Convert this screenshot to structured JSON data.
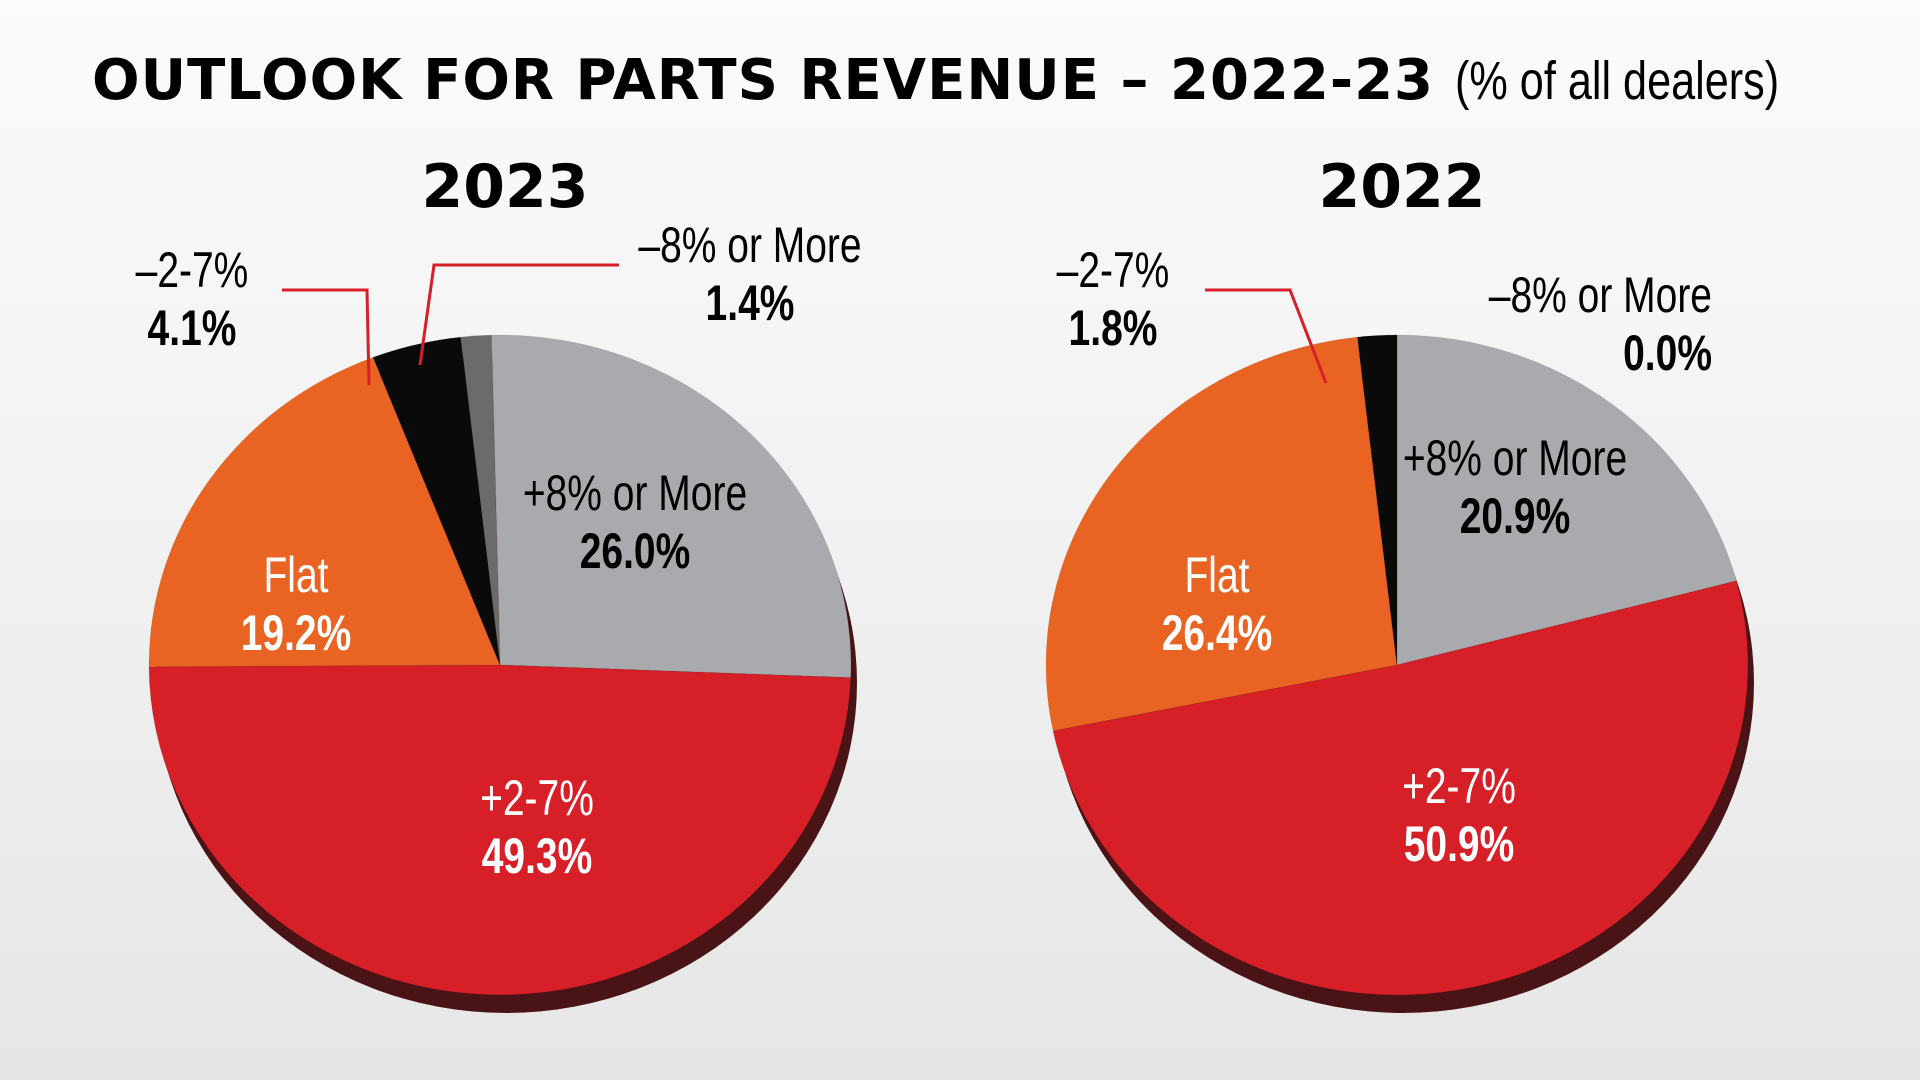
{
  "title": {
    "main": "OUTLOOK FOR PARTS REVENUE – 2022-23",
    "sub": "(% of all dealers)"
  },
  "colors": {
    "increase_8_or_more": "#a9aaad",
    "increase_2_7": "#d71f27",
    "flat": "#e96423",
    "decrease_2_7": "#0a0a0a",
    "decrease_8_or_more": "#6b6b6b",
    "leader_line": "#d71f27"
  },
  "chart_data": [
    {
      "type": "pie",
      "title": "2023",
      "slices": [
        {
          "label": "+8% or More",
          "value": 26.0,
          "value_label": "26.0%",
          "color": "#a9aaad"
        },
        {
          "label": "+2-7%",
          "value": 49.3,
          "value_label": "49.3%",
          "color": "#d71f27"
        },
        {
          "label": "Flat",
          "value": 19.2,
          "value_label": "19.2%",
          "color": "#e96423"
        },
        {
          "label": "–2-7%",
          "value": 4.1,
          "value_label": "4.1%",
          "color": "#0a0a0a"
        },
        {
          "label": "–8% or More",
          "value": 1.4,
          "value_label": "1.4%",
          "color": "#6b6b6b"
        }
      ]
    },
    {
      "type": "pie",
      "title": "2022",
      "slices": [
        {
          "label": "+8% or More",
          "value": 20.9,
          "value_label": "20.9%",
          "color": "#a9aaad"
        },
        {
          "label": "+2-7%",
          "value": 50.9,
          "value_label": "50.9%",
          "color": "#d71f27"
        },
        {
          "label": "Flat",
          "value": 26.4,
          "value_label": "26.4%",
          "color": "#e96423"
        },
        {
          "label": "–2-7%",
          "value": 1.8,
          "value_label": "1.8%",
          "color": "#0a0a0a"
        },
        {
          "label": "–8% or More",
          "value": 0.0,
          "value_label": "0.0%",
          "color": "#6b6b6b"
        }
      ]
    }
  ]
}
